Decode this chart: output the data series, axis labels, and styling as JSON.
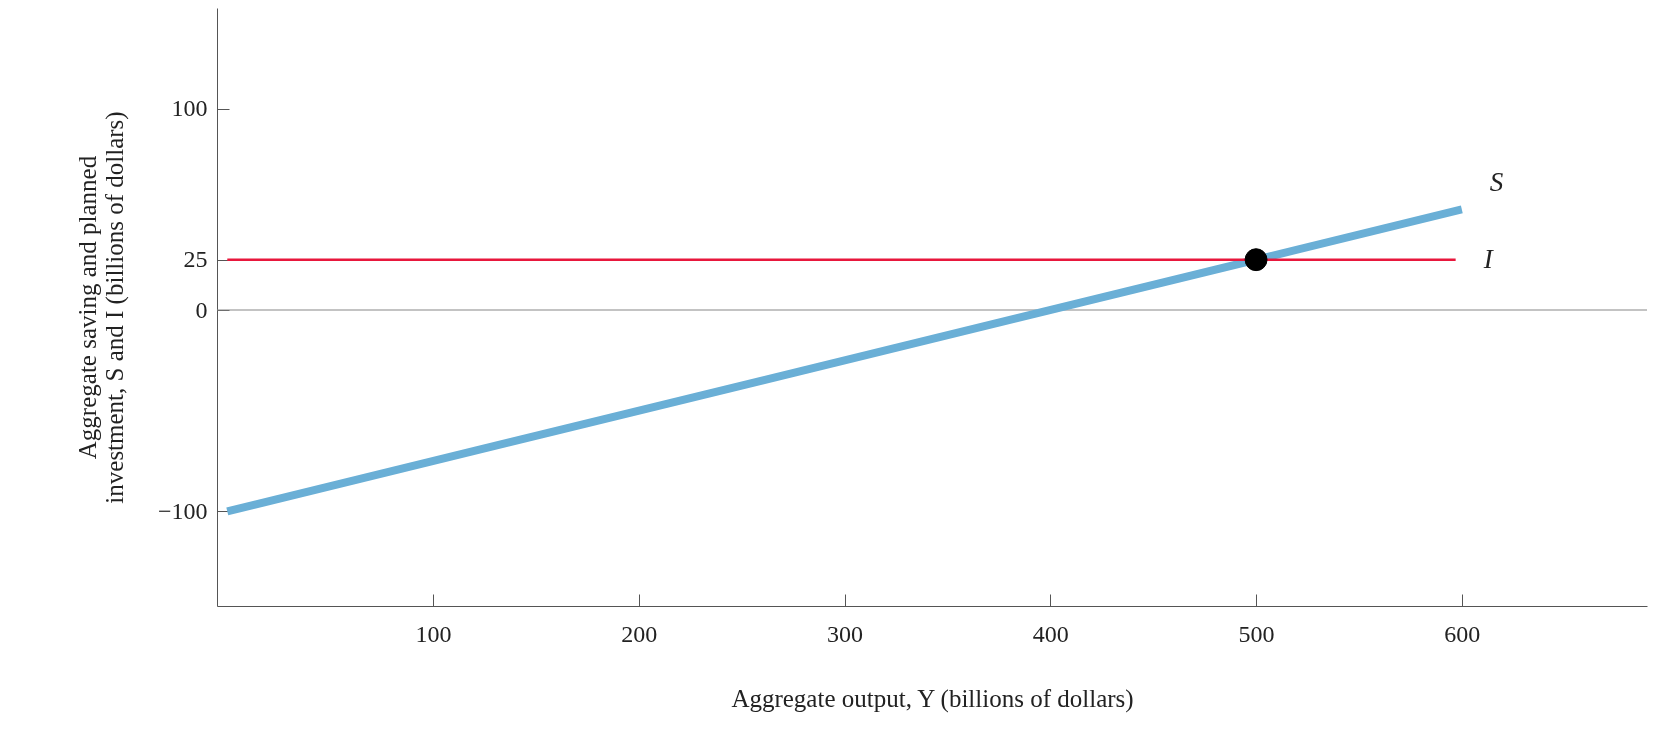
{
  "chart_data": {
    "type": "line",
    "xlabel": "Aggregate output, Y (billions of dollars)",
    "ylabel": "Aggregate saving and planned investment, S and I (billions of dollars)",
    "xlim": [
      -5,
      690
    ],
    "ylim": [
      -147,
      150
    ],
    "xticks": [
      100,
      200,
      300,
      400,
      500,
      600
    ],
    "yticks": [
      -100,
      0,
      25,
      100
    ],
    "series": [
      {
        "name": "S",
        "color": "#6aafd6",
        "x": [
          0,
          600
        ],
        "values": [
          -100,
          50
        ]
      },
      {
        "name": "I",
        "color": "#e8173c",
        "x": [
          0,
          597
        ],
        "values": [
          25,
          25
        ]
      },
      {
        "type": "scatter",
        "color": "#000000",
        "x": [
          500
        ],
        "values": [
          25
        ]
      }
    ],
    "ref_lines": [
      {
        "axis": "y",
        "value": 0,
        "color": "#888888"
      }
    ],
    "grid": false
  }
}
